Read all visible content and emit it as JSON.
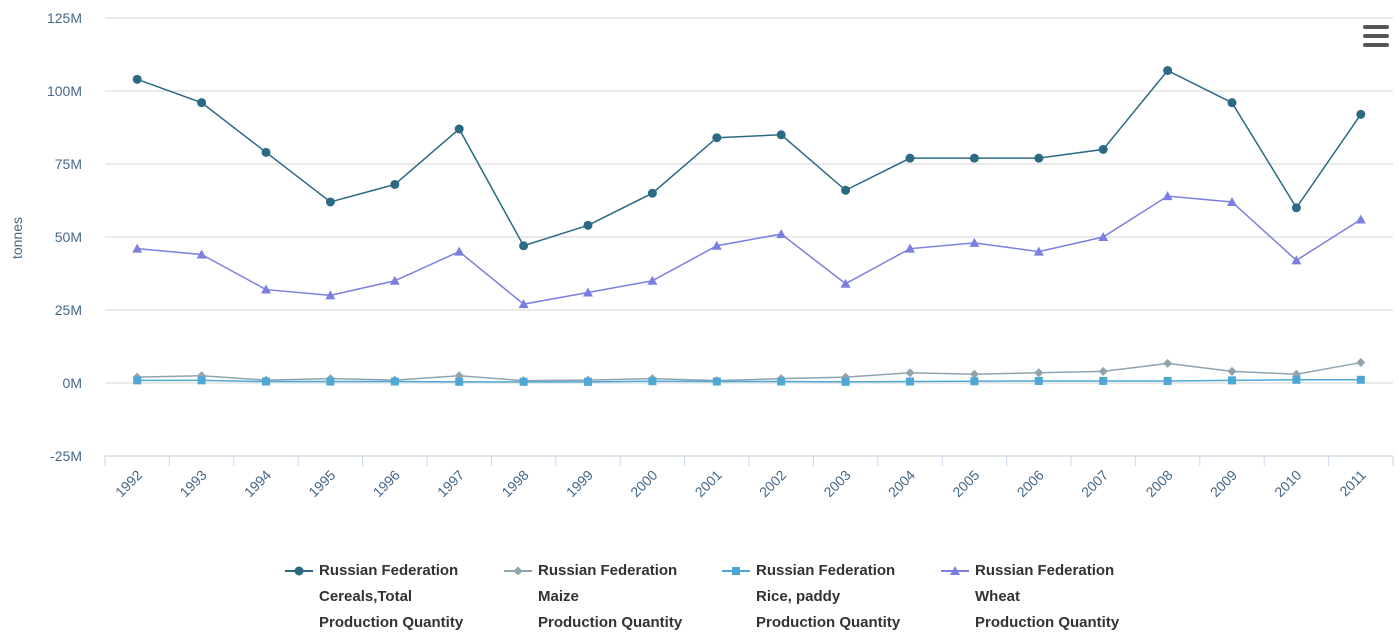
{
  "chart_data": {
    "type": "line",
    "y_label": "tonnes",
    "categories": [
      "1992",
      "1993",
      "1994",
      "1995",
      "1996",
      "1997",
      "1998",
      "1999",
      "2000",
      "2001",
      "2002",
      "2003",
      "2004",
      "2005",
      "2006",
      "2007",
      "2008",
      "2009",
      "2010",
      "2011"
    ],
    "series": [
      {
        "name": "Russian Federation\nCereals,Total\nProduction Quantity",
        "color": "#2b6a84",
        "marker": "circle",
        "values": [
          104000000,
          96000000,
          79000000,
          62000000,
          68000000,
          87000000,
          47000000,
          54000000,
          65000000,
          84000000,
          85000000,
          66000000,
          77000000,
          77000000,
          77000000,
          80000000,
          107000000,
          96000000,
          60000000,
          92000000
        ]
      },
      {
        "name": "Russian Federation\nMaize\nProduction Quantity",
        "color": "#8fa4ad",
        "marker": "diamond",
        "values": [
          2000000,
          2500000,
          1000000,
          1500000,
          1000000,
          2500000,
          800000,
          1000000,
          1500000,
          800000,
          1500000,
          2000000,
          3500000,
          3000000,
          3500000,
          4000000,
          6700000,
          4000000,
          3000000,
          7000000
        ]
      },
      {
        "name": "Russian Federation\nRice, paddy\nProduction Quantity",
        "color": "#4fa8d4",
        "marker": "square",
        "values": [
          900000,
          900000,
          500000,
          500000,
          500000,
          400000,
          400000,
          400000,
          600000,
          500000,
          500000,
          400000,
          500000,
          600000,
          700000,
          700000,
          700000,
          900000,
          1100000,
          1100000
        ]
      },
      {
        "name": "Russian Federation\nWheat\nProduction Quantity",
        "color": "#7b7fe0",
        "marker": "triangle",
        "values": [
          46000000,
          44000000,
          32000000,
          30000000,
          35000000,
          45000000,
          27000000,
          31000000,
          35000000,
          47000000,
          51000000,
          34000000,
          46000000,
          48000000,
          45000000,
          50000000,
          64000000,
          62000000,
          42000000,
          56000000
        ]
      }
    ],
    "ylim": [
      -25000000,
      125000000
    ],
    "yticks": [
      {
        "value": -25000000,
        "label": "-25M"
      },
      {
        "value": 0,
        "label": "0M"
      },
      {
        "value": 25000000,
        "label": "25M"
      },
      {
        "value": 50000000,
        "label": "50M"
      },
      {
        "value": 75000000,
        "label": "75M"
      },
      {
        "value": 100000000,
        "label": "100M"
      },
      {
        "value": 125000000,
        "label": "125M"
      }
    ],
    "grid": true
  }
}
